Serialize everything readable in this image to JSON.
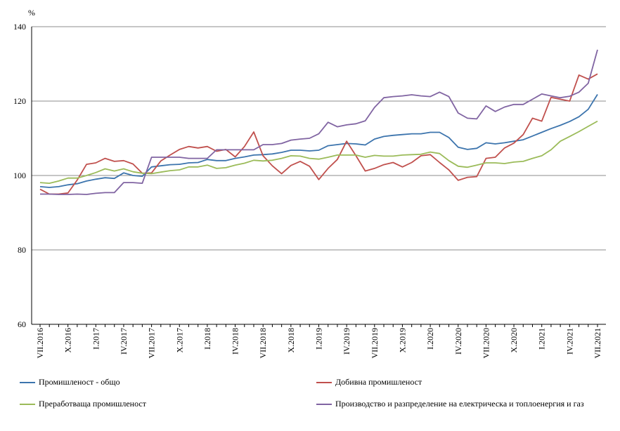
{
  "chart_data": {
    "type": "line",
    "unit": "%",
    "ylim": [
      60,
      140
    ],
    "yticks": [
      60,
      80,
      100,
      120,
      140
    ],
    "grid": "horizontal",
    "legend_position": "bottom",
    "x_tick_labels": [
      "VII.2016",
      "X.2016",
      "I.2017",
      "IV.2017",
      "VII.2017",
      "X.2017",
      "I.2018",
      "IV.2018",
      "VII.2018",
      "X.2018",
      "I.2019",
      "IV.2019",
      "VII.2019",
      "X.2019",
      "I.2020",
      "IV.2020",
      "VII.2020",
      "X.2020",
      "I.2021",
      "IV.2021",
      "VII.2021"
    ],
    "x": [
      "2016-07",
      "2016-08",
      "2016-09",
      "2016-10",
      "2016-11",
      "2016-12",
      "2017-01",
      "2017-02",
      "2017-03",
      "2017-04",
      "2017-05",
      "2017-06",
      "2017-07",
      "2017-08",
      "2017-09",
      "2017-10",
      "2017-11",
      "2017-12",
      "2018-01",
      "2018-02",
      "2018-03",
      "2018-04",
      "2018-05",
      "2018-06",
      "2018-07",
      "2018-08",
      "2018-09",
      "2018-10",
      "2018-11",
      "2018-12",
      "2019-01",
      "2019-02",
      "2019-03",
      "2019-04",
      "2019-05",
      "2019-06",
      "2019-07",
      "2019-08",
      "2019-09",
      "2019-10",
      "2019-11",
      "2019-12",
      "2020-01",
      "2020-02",
      "2020-03",
      "2020-04",
      "2020-05",
      "2020-06",
      "2020-07",
      "2020-08",
      "2020-09",
      "2020-10",
      "2020-11",
      "2020-12",
      "2021-01",
      "2021-02",
      "2021-03",
      "2021-04",
      "2021-05",
      "2021-06",
      "2021-07"
    ],
    "series": [
      {
        "name": "Промишленост - общо",
        "color": "#3c74ad",
        "values": [
          97.0,
          96.8,
          97.0,
          97.5,
          97.8,
          98.5,
          99.0,
          99.4,
          99.2,
          100.7,
          100.0,
          99.8,
          102.3,
          102.6,
          102.9,
          103.0,
          103.4,
          103.5,
          104.3,
          104.0,
          104.0,
          104.6,
          105.0,
          105.5,
          105.6,
          105.8,
          106.2,
          106.8,
          106.8,
          106.6,
          106.8,
          108.0,
          108.3,
          108.6,
          108.5,
          108.2,
          109.8,
          110.5,
          110.8,
          111.0,
          111.2,
          111.2,
          111.6,
          111.6,
          110.2,
          107.6,
          107.0,
          107.3,
          108.8,
          108.5,
          108.8,
          109.2,
          109.6,
          110.6,
          111.6,
          112.6,
          113.5,
          114.5,
          115.8,
          117.8,
          121.8
        ]
      },
      {
        "name": "Добивна промишленост",
        "color": "#c0504d",
        "values": [
          96.3,
          95.0,
          95.0,
          95.3,
          98.8,
          103.0,
          103.4,
          104.6,
          103.8,
          104.0,
          103.1,
          100.6,
          100.7,
          103.9,
          105.5,
          107.0,
          107.8,
          107.4,
          107.8,
          106.5,
          107.0,
          105.0,
          107.8,
          111.7,
          105.3,
          102.6,
          100.5,
          102.7,
          103.8,
          102.5,
          98.9,
          101.9,
          104.3,
          109.2,
          105.3,
          101.2,
          101.9,
          102.9,
          103.5,
          102.3,
          103.5,
          105.3,
          105.6,
          103.5,
          101.5,
          98.7,
          99.5,
          99.7,
          104.6,
          104.9,
          107.4,
          108.7,
          111.0,
          115.4,
          114.6,
          121.0,
          120.5,
          120.0,
          127.0,
          125.9,
          127.3
        ]
      },
      {
        "name": "Преработваща промишленост",
        "color": "#9bbb59",
        "values": [
          98.1,
          97.9,
          98.5,
          99.3,
          99.3,
          100.0,
          100.8,
          101.8,
          101.2,
          101.8,
          101.0,
          100.6,
          100.5,
          100.9,
          101.3,
          101.5,
          102.3,
          102.3,
          102.8,
          101.9,
          102.1,
          102.8,
          103.3,
          104.1,
          103.9,
          104.1,
          104.6,
          105.3,
          105.2,
          104.6,
          104.4,
          104.9,
          105.5,
          105.5,
          105.5,
          104.9,
          105.4,
          105.2,
          105.2,
          105.5,
          105.6,
          105.7,
          106.3,
          105.9,
          104.0,
          102.5,
          102.2,
          102.8,
          103.4,
          103.4,
          103.2,
          103.6,
          103.8,
          104.6,
          105.3,
          106.9,
          109.2,
          110.5,
          111.8,
          113.2,
          114.6
        ]
      },
      {
        "name": "Производство и разпределение на електрическа и топлоенергия и газ",
        "color": "#8064a2",
        "values": [
          95.0,
          95.0,
          94.9,
          94.9,
          95.0,
          94.9,
          95.2,
          95.4,
          95.4,
          98.1,
          98.1,
          97.9,
          104.9,
          104.9,
          104.9,
          104.9,
          104.6,
          104.6,
          104.6,
          106.9,
          106.9,
          106.9,
          106.9,
          106.9,
          108.3,
          108.3,
          108.6,
          109.5,
          109.8,
          110.0,
          111.2,
          114.3,
          113.1,
          113.6,
          113.9,
          114.7,
          118.3,
          120.9,
          121.2,
          121.4,
          121.7,
          121.4,
          121.2,
          122.4,
          121.2,
          116.8,
          115.4,
          115.2,
          118.7,
          117.2,
          118.4,
          119.1,
          119.1,
          120.5,
          121.9,
          121.4,
          120.9,
          121.3,
          122.4,
          124.8,
          133.8
        ]
      }
    ]
  }
}
